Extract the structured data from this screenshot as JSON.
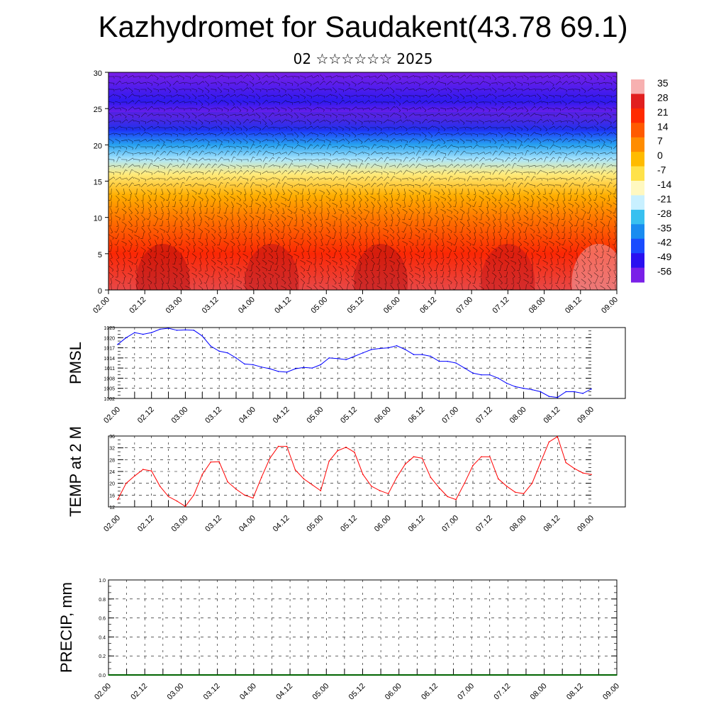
{
  "title": "Kazhydromet for Saudakent(43.78 69.1)",
  "subtitle": "02 ☆☆☆☆☆☆ 2025",
  "time_ticks": [
    "02.00",
    "02.12",
    "03.00",
    "03.12",
    "04.00",
    "04.12",
    "05.00",
    "05.12",
    "06.00",
    "06.12",
    "07.00",
    "07.12",
    "08.00",
    "08.12",
    "09.00"
  ],
  "colors": {
    "pmsl_line": "#0000ff",
    "temp_line": "#ff0000",
    "precip_line": "#006400"
  },
  "chart_data": [
    {
      "type": "heatmap",
      "name_text": "",
      "ylim": [
        0,
        30
      ],
      "yticks": [
        0,
        5,
        10,
        15,
        20,
        25,
        30
      ],
      "colorbar_labels": [
        "35",
        "28",
        "21",
        "14",
        "7",
        "0",
        "-7",
        "-14",
        "-21",
        "-28",
        "-35",
        "-42",
        "-49",
        "-56"
      ],
      "colorbar_colors": [
        "#f7b0b0",
        "#e11f1f",
        "#ff2a00",
        "#ff5a00",
        "#ff8c00",
        "#ffbb00",
        "#ffe24a",
        "#fff8c0",
        "#c8f0ff",
        "#38c0f0",
        "#1a8cf0",
        "#1a4cff",
        "#2a10f0",
        "#7a20e8"
      ],
      "profile": [
        {
          "alt": 0,
          "temp": 30
        },
        {
          "alt": 5,
          "temp": 22
        },
        {
          "alt": 10,
          "temp": 10
        },
        {
          "alt": 13,
          "temp": 2
        },
        {
          "alt": 16,
          "temp": -10
        },
        {
          "alt": 18,
          "temp": -22
        },
        {
          "alt": 20,
          "temp": -32
        },
        {
          "alt": 22,
          "temp": -45
        },
        {
          "alt": 24,
          "temp": -56
        },
        {
          "alt": 26,
          "temp": -50
        },
        {
          "alt": 30,
          "temp": -58
        }
      ]
    },
    {
      "type": "line",
      "ylabel": "PMSL",
      "ylim": [
        1002,
        1023
      ],
      "yticks": [
        1002,
        1005,
        1008,
        1011,
        1014,
        1017,
        1020,
        1023
      ],
      "x": [
        0,
        3,
        6,
        9,
        12,
        15,
        18,
        21,
        24,
        27,
        30,
        33,
        36,
        39,
        42,
        45,
        48,
        51,
        54,
        57,
        60,
        63,
        66,
        69,
        72,
        75,
        78,
        81,
        84,
        87,
        90,
        93,
        96,
        99,
        102,
        105,
        108,
        111,
        114,
        117,
        120,
        123,
        126,
        129,
        132,
        135,
        138,
        141,
        144,
        147,
        150,
        153,
        156,
        159,
        162,
        165,
        168
      ],
      "series": [
        {
          "values": [
            1018,
            1020,
            1021.5,
            1021,
            1021.5,
            1022.5,
            1022.8,
            1022.2,
            1022.3,
            1022.2,
            1020.5,
            1017.5,
            1016,
            1015.5,
            1014,
            1012.2,
            1012,
            1011.3,
            1010.8,
            1010,
            1009.8,
            1010.8,
            1011.2,
            1011,
            1012,
            1014,
            1013.8,
            1013.5,
            1014.5,
            1015.5,
            1016.5,
            1016.8,
            1017,
            1017.6,
            1016.5,
            1015,
            1015,
            1014.5,
            1013,
            1013,
            1012.5,
            1011,
            1009.5,
            1009,
            1009,
            1008,
            1006.5,
            1005.5,
            1005,
            1004.6,
            1004,
            1002.6,
            1002.3,
            1004,
            1004,
            1003.5,
            1004.8
          ]
        }
      ]
    },
    {
      "type": "line",
      "ylabel": "TEMP at 2 M",
      "ylim": [
        12,
        36
      ],
      "yticks": [
        12,
        16,
        20,
        24,
        28,
        32,
        36
      ],
      "x": [
        0,
        3,
        6,
        9,
        12,
        15,
        18,
        21,
        24,
        27,
        30,
        33,
        36,
        39,
        42,
        45,
        48,
        51,
        54,
        57,
        60,
        63,
        66,
        69,
        72,
        75,
        78,
        81,
        84,
        87,
        90,
        93,
        96,
        99,
        102,
        105,
        108,
        111,
        114,
        117,
        120,
        123,
        126,
        129,
        132,
        135,
        138,
        141,
        144,
        147,
        150,
        153,
        156,
        159,
        162,
        165,
        168
      ],
      "series": [
        {
          "values": [
            14.5,
            20,
            22.5,
            24.7,
            24.2,
            19,
            15.5,
            14,
            12.2,
            16,
            23,
            27.2,
            27.3,
            20.5,
            18,
            16,
            15,
            22,
            28.5,
            32.5,
            32.5,
            24.5,
            21.5,
            19.5,
            17.5,
            27.5,
            31,
            32.2,
            30.5,
            23,
            19,
            17.5,
            16.5,
            22,
            26.5,
            29,
            28.5,
            22,
            18.5,
            15.5,
            14.5,
            20,
            26,
            29,
            29,
            21.5,
            19,
            17,
            16.5,
            20,
            27,
            34,
            35.8,
            27,
            25,
            23.5,
            23
          ]
        }
      ]
    },
    {
      "type": "line",
      "ylabel": "PRECIP, mm",
      "ylim": [
        0.0,
        1.0
      ],
      "yticks": [
        "0.0",
        "0.2",
        "0.4",
        "0.6",
        "0.8",
        "1.0"
      ],
      "x": [
        0,
        168
      ],
      "series": [
        {
          "values": [
            0,
            0
          ]
        }
      ]
    }
  ]
}
